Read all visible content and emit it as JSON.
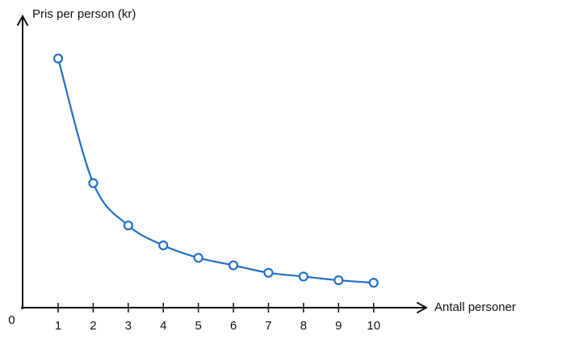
{
  "chart_data": {
    "type": "line",
    "y_label": "Pris per person (kr)",
    "x_label": "Antall personer",
    "x": [
      1,
      2,
      3,
      4,
      5,
      6,
      7,
      8,
      9,
      10
    ],
    "series": [
      {
        "color": "#1f6fc7",
        "values": [
          100,
          50,
          33,
          25,
          20,
          17,
          14,
          12.5,
          11,
          10
        ]
      }
    ],
    "xlim": [
      0,
      11.55
    ],
    "ylim": [
      0,
      117
    ],
    "xticks": [
      0,
      1,
      2,
      3,
      4,
      5,
      6,
      7,
      8,
      9,
      10
    ],
    "markers": true
  }
}
